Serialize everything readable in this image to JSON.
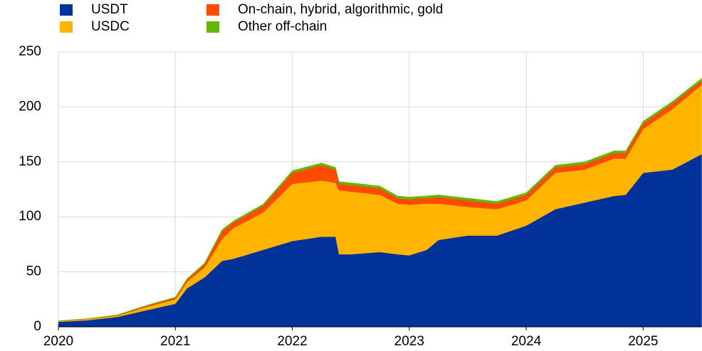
{
  "chart_data": {
    "type": "stacked_area",
    "x": [
      2020.0,
      2020.25,
      2020.5,
      2020.75,
      2021.0,
      2021.1,
      2021.25,
      2021.4,
      2021.5,
      2021.75,
      2022.0,
      2022.25,
      2022.37,
      2022.4,
      2022.5,
      2022.75,
      2022.9,
      2023.0,
      2023.15,
      2023.25,
      2023.5,
      2023.75,
      2024.0,
      2024.25,
      2024.5,
      2024.75,
      2024.85,
      2025.0,
      2025.25,
      2025.5
    ],
    "series": [
      {
        "name": "USDT",
        "color": "#003299",
        "values": [
          4.5,
          6,
          9,
          15,
          21,
          35,
          45,
          60,
          62,
          70,
          78,
          82,
          82,
          66,
          66,
          68,
          66,
          65,
          70,
          79,
          83,
          83,
          92,
          107,
          113,
          119,
          120,
          140,
          143,
          157
        ]
      },
      {
        "name": "USDC",
        "color": "#ffb400",
        "values": [
          0.5,
          1,
          1,
          3,
          4,
          6,
          9,
          20,
          28,
          34,
          52,
          51,
          49,
          58,
          57,
          52,
          46,
          46,
          42,
          33,
          26,
          24,
          23,
          33,
          30,
          34,
          33,
          40,
          55,
          63
        ]
      },
      {
        "name": "On-chain, hybrid, algorithmic, gold",
        "color": "#ff4b00",
        "values": [
          0.3,
          0.3,
          0.5,
          1,
          1.5,
          2,
          3,
          7,
          5,
          6,
          10,
          14,
          12,
          6,
          6,
          6,
          5,
          5,
          5,
          6,
          6,
          5,
          5,
          5,
          5,
          5,
          5,
          5,
          5,
          4
        ]
      },
      {
        "name": "Other off-chain",
        "color": "#65b800",
        "values": [
          0.2,
          0.2,
          0.3,
          0.5,
          0.5,
          0.8,
          1,
          1.5,
          1.5,
          1.5,
          2,
          2,
          2,
          2,
          2,
          2,
          2,
          2,
          2,
          2,
          2,
          2,
          2,
          2,
          2,
          2,
          2,
          2,
          2,
          2
        ]
      }
    ],
    "xlim": [
      2020,
      2025.5
    ],
    "xticks": [
      2020,
      2021,
      2022,
      2023,
      2024,
      2025
    ],
    "ylim": [
      0,
      250
    ],
    "yticks": [
      0,
      50,
      100,
      150,
      200,
      250
    ],
    "grid": true
  }
}
